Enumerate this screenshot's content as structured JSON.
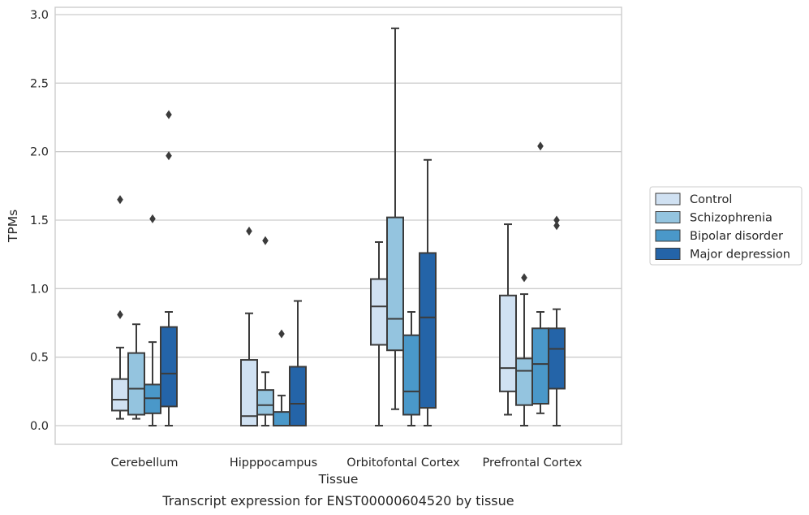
{
  "chart_data": {
    "type": "boxplot",
    "title": "",
    "caption": "Transcript expression for ENST00000604520 by tissue",
    "xlabel": "Tissue",
    "ylabel": "TPMs",
    "ylim": [
      -0.14,
      3.05
    ],
    "yticks": [
      "0.0",
      "0.5",
      "1.0",
      "1.5",
      "2.0",
      "2.5",
      "3.0"
    ],
    "grid": "horizontal",
    "legend_position": "right",
    "categories": [
      "Cerebellum",
      "Hipppocampus",
      "Orbitofontal Cortex",
      "Prefrontal Cortex"
    ],
    "series": [
      {
        "name": "Control",
        "color": "#d0e1f2",
        "boxes": [
          {
            "whislo": 0.05,
            "q1": 0.11,
            "med": 0.19,
            "q3": 0.34,
            "whishi": 0.57,
            "fliers": [
              0.81,
              1.65
            ]
          },
          {
            "whislo": 0.0,
            "q1": 0.0,
            "med": 0.07,
            "q3": 0.48,
            "whishi": 0.82,
            "fliers": [
              1.42
            ]
          },
          {
            "whislo": 0.0,
            "q1": 0.59,
            "med": 0.87,
            "q3": 1.07,
            "whishi": 1.34,
            "fliers": []
          },
          {
            "whislo": 0.08,
            "q1": 0.25,
            "med": 0.42,
            "q3": 0.95,
            "whishi": 1.47,
            "fliers": []
          }
        ]
      },
      {
        "name": "Schizophrenia",
        "color": "#94c4df",
        "boxes": [
          {
            "whislo": 0.05,
            "q1": 0.08,
            "med": 0.27,
            "q3": 0.53,
            "whishi": 0.74,
            "fliers": []
          },
          {
            "whislo": 0.0,
            "q1": 0.08,
            "med": 0.15,
            "q3": 0.26,
            "whishi": 0.39,
            "fliers": [
              1.35
            ]
          },
          {
            "whislo": 0.12,
            "q1": 0.55,
            "med": 0.78,
            "q3": 1.52,
            "whishi": 2.9,
            "fliers": []
          },
          {
            "whislo": 0.0,
            "q1": 0.15,
            "med": 0.4,
            "q3": 0.49,
            "whishi": 0.96,
            "fliers": [
              1.08
            ]
          }
        ]
      },
      {
        "name": "Bipolar disorder",
        "color": "#4a98c9",
        "boxes": [
          {
            "whislo": 0.0,
            "q1": 0.09,
            "med": 0.2,
            "q3": 0.3,
            "whishi": 0.61,
            "fliers": [
              1.51
            ]
          },
          {
            "whislo": 0.0,
            "q1": 0.0,
            "med": 0.0,
            "q3": 0.1,
            "whishi": 0.22,
            "fliers": [
              0.67
            ]
          },
          {
            "whislo": 0.0,
            "q1": 0.08,
            "med": 0.25,
            "q3": 0.66,
            "whishi": 0.83,
            "fliers": []
          },
          {
            "whislo": 0.09,
            "q1": 0.16,
            "med": 0.45,
            "q3": 0.71,
            "whishi": 0.83,
            "fliers": [
              2.04
            ]
          }
        ]
      },
      {
        "name": "Major depression",
        "color": "#2464a8",
        "boxes": [
          {
            "whislo": 0.0,
            "q1": 0.14,
            "med": 0.38,
            "q3": 0.72,
            "whishi": 0.83,
            "fliers": [
              1.97,
              2.27
            ]
          },
          {
            "whislo": 0.0,
            "q1": 0.0,
            "med": 0.16,
            "q3": 0.43,
            "whishi": 0.91,
            "fliers": []
          },
          {
            "whislo": 0.0,
            "q1": 0.13,
            "med": 0.79,
            "q3": 1.26,
            "whishi": 1.94,
            "fliers": []
          },
          {
            "whislo": 0.0,
            "q1": 0.27,
            "med": 0.56,
            "q3": 0.71,
            "whishi": 0.85,
            "fliers": [
              1.46,
              1.5
            ]
          }
        ]
      }
    ]
  }
}
